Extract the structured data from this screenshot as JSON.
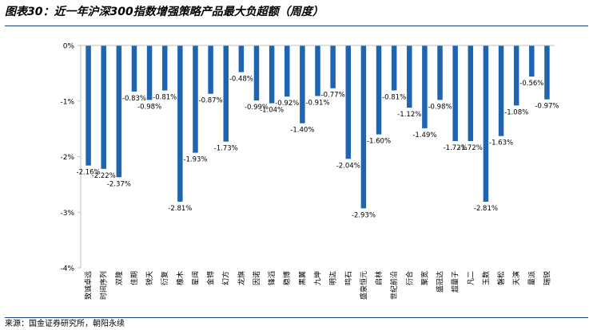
{
  "title": "图表30：近一年沪深300指数增强策略产品最大负超额（周度）",
  "source": "来源：国金证券研究所，朝阳永续",
  "colors": {
    "bar": "#1f64b0",
    "axis": "#bfbfbf",
    "text": "#000000"
  },
  "chart_data": {
    "type": "bar",
    "categories": [
      "致诚卓远",
      "时间序列",
      "双隆",
      "佳期",
      "锐天",
      "衍复",
      "橡木",
      "星阔",
      "金锝",
      "幻方",
      "龙旗",
      "因诺",
      "锋滔",
      "稳博",
      "黑翼",
      "九坤",
      "明汯",
      "鸣石",
      "盛泉恒元",
      "启林",
      "世纪前沿",
      "衍合",
      "聚宽",
      "盛冠达",
      "超量子",
      "凡二",
      "玉数",
      "磐松",
      "天演",
      "量派",
      "瑞锐"
    ],
    "values": [
      -2.16,
      -2.22,
      -2.37,
      -0.83,
      -0.98,
      -0.81,
      -2.81,
      -1.93,
      -0.87,
      -1.73,
      -0.48,
      -0.99,
      -1.04,
      -0.92,
      -1.4,
      -0.91,
      -0.77,
      -2.04,
      -2.93,
      -1.6,
      -0.81,
      -1.12,
      -1.49,
      -0.98,
      -1.72,
      -1.72,
      -2.81,
      -1.63,
      -1.08,
      -0.56,
      -0.97
    ],
    "labels": [
      "-2.16%",
      "-2.22%",
      "-2.37%",
      "-0.83%",
      "-0.98%",
      "-0.81%",
      "-2.81%",
      "-1.93%",
      "-0.87%",
      "-1.73%",
      "-0.48%",
      "-0.99%",
      "-1.04%",
      "-0.92%",
      "-1.40%",
      "-0.91%",
      "-0.77%",
      "-2.04%",
      "-2.93%",
      "-1.60%",
      "-0.81%",
      "-1.12%",
      "-1.49%",
      "-0.98%",
      "-1.72%",
      "-1.72%",
      "-2.81%",
      "-1.63%",
      "-1.08%",
      "-0.56%",
      "-0.97%"
    ],
    "ylim": [
      -4,
      0
    ],
    "yticks": [
      0,
      -1,
      -2,
      -3,
      -4
    ],
    "ytick_labels": [
      "0%",
      "-1%",
      "-2%",
      "-3%",
      "-4%"
    ],
    "legend": "none",
    "grid": false
  }
}
